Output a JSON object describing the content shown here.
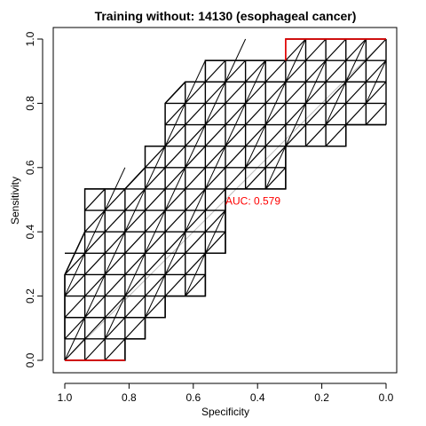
{
  "chart_data": {
    "type": "line",
    "title": "Training without: 14130 (esophageal cancer)",
    "xlabel": "Specificity",
    "ylabel": "Sensitivity",
    "xlim": [
      1.0,
      0.0
    ],
    "ylim": [
      0.0,
      1.0
    ],
    "x_reversed": true,
    "x_ticks": [
      1.0,
      0.8,
      0.6,
      0.4,
      0.2,
      0.0
    ],
    "x_tick_labels": [
      "1.0",
      "0.8",
      "0.6",
      "0.4",
      "0.2",
      "0.0"
    ],
    "y_ticks": [
      0.0,
      0.2,
      0.4,
      0.6,
      0.8,
      1.0
    ],
    "y_tick_labels": [
      "0.0",
      "0.2",
      "0.4",
      "0.6",
      "0.8",
      "1.0"
    ],
    "grid": false,
    "annotation": {
      "text": "AUC: 0.579",
      "x": 0.5,
      "y": 0.485,
      "color": "#ff0000"
    },
    "colors": {
      "grid_lines": "#000000",
      "highlight": "#ff0000",
      "diagonal": "#bebebe",
      "frame": "#000000"
    },
    "grid_x": [
      1.0,
      0.9375,
      0.875,
      0.8125,
      0.75,
      0.6875,
      0.625,
      0.5625,
      0.5,
      0.4375,
      0.375,
      0.3125,
      0.25,
      0.1875,
      0.125,
      0.0625,
      0.0
    ],
    "grid_y": [
      0.0,
      0.0667,
      0.1333,
      0.2,
      0.2667,
      0.3333,
      0.4,
      0.4667,
      0.5333,
      0.6,
      0.6667,
      0.7333,
      0.8,
      0.8667,
      0.9333,
      1.0
    ],
    "band_lower": [
      [
        1.0,
        0.0
      ],
      [
        0.8125,
        0.0
      ],
      [
        0.8125,
        0.0667
      ],
      [
        0.75,
        0.0667
      ],
      [
        0.75,
        0.1333
      ],
      [
        0.6875,
        0.1333
      ],
      [
        0.6875,
        0.2
      ],
      [
        0.5625,
        0.2
      ],
      [
        0.5625,
        0.3333
      ],
      [
        0.5,
        0.3333
      ],
      [
        0.5,
        0.5333
      ],
      [
        0.3125,
        0.5333
      ],
      [
        0.3125,
        0.6667
      ],
      [
        0.125,
        0.6667
      ],
      [
        0.125,
        0.7333
      ],
      [
        0.0,
        0.7333
      ]
    ],
    "band_upper": [
      [
        1.0,
        0.0667
      ],
      [
        1.0,
        0.2667
      ],
      [
        0.9375,
        0.4
      ],
      [
        0.9375,
        0.5333
      ],
      [
        0.8125,
        0.5333
      ],
      [
        0.75,
        0.6
      ],
      [
        0.75,
        0.6667
      ],
      [
        0.6875,
        0.6667
      ],
      [
        0.6875,
        0.8
      ],
      [
        0.625,
        0.8667
      ],
      [
        0.5625,
        0.8667
      ],
      [
        0.5625,
        0.9333
      ],
      [
        0.3125,
        0.9333
      ],
      [
        0.3125,
        1.0
      ],
      [
        0.0,
        1.0
      ]
    ],
    "highlighted_segments": [
      [
        [
          1.0,
          0.0
        ],
        [
          0.8125,
          0.0
        ]
      ],
      [
        [
          0.3125,
          0.9333
        ],
        [
          0.3125,
          1.0
        ],
        [
          0.0,
          1.0
        ]
      ]
    ]
  }
}
